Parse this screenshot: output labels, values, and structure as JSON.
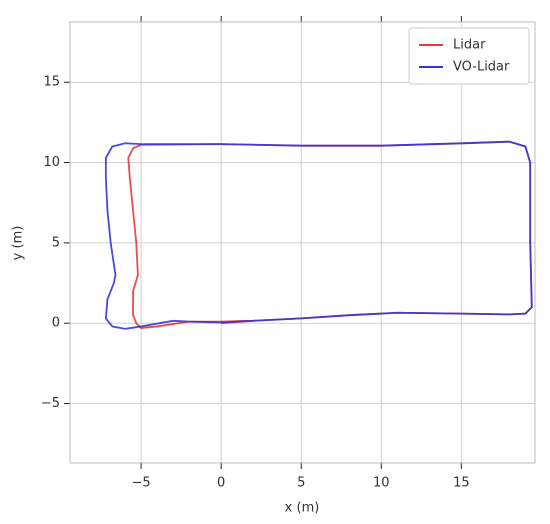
{
  "chart_data": {
    "type": "line",
    "xlabel": "x (m)",
    "ylabel": "y (m)",
    "xlim": [
      -9.44,
      19.6
    ],
    "ylim": [
      -8.7,
      18.75
    ],
    "xticks": [
      {
        "value": -5,
        "label": "−5"
      },
      0,
      5,
      10,
      15
    ],
    "yticks": [
      {
        "value": -5,
        "label": "−5"
      },
      0,
      5,
      10,
      15
    ],
    "grid": true,
    "legend": "upper right",
    "series": [
      {
        "name": "Lidar",
        "color": "#e8393a",
        "x": [
          1.7,
          0,
          -2,
          -4,
          -5,
          -5.3,
          -5.5,
          -5.5,
          -5.2,
          -5.3,
          -5.5,
          -5.7,
          -5.8,
          -5.5,
          -5,
          0,
          5,
          10,
          15,
          18,
          19,
          19.3,
          19.3,
          19.4,
          19,
          18,
          15,
          11,
          8,
          5,
          2,
          0
        ],
        "values": [
          0.15,
          0.1,
          0.1,
          -0.2,
          -0.3,
          0,
          0.5,
          2,
          3,
          5,
          7,
          9,
          10.3,
          10.9,
          11.1,
          11.15,
          11.05,
          11.05,
          11.2,
          11.3,
          11,
          10,
          5,
          1,
          0.6,
          0.55,
          0.6,
          0.65,
          0.5,
          0.3,
          0.15,
          0
        ]
      },
      {
        "name": "VO-Lidar",
        "color": "#3535d8",
        "x": [
          0,
          -2,
          -3,
          -5,
          -6,
          -6.8,
          -7.2,
          -7.1,
          -6.7,
          -6.6,
          -6.9,
          -7.1,
          -7.2,
          -7.2,
          -6.8,
          -6,
          -5,
          0,
          5,
          10,
          15,
          18,
          19,
          19.3,
          19.3,
          19.4,
          19,
          18,
          15,
          11,
          8,
          5,
          2,
          0
        ],
        "values": [
          0.05,
          0.1,
          0.15,
          -0.2,
          -0.35,
          -0.2,
          0.3,
          1.5,
          2.5,
          3,
          5,
          7,
          9,
          10.3,
          11,
          11.2,
          11.15,
          11.15,
          11.05,
          11.05,
          11.2,
          11.3,
          11,
          10,
          5,
          1,
          0.6,
          0.55,
          0.6,
          0.65,
          0.5,
          0.3,
          0.15,
          0.05
        ]
      }
    ]
  }
}
